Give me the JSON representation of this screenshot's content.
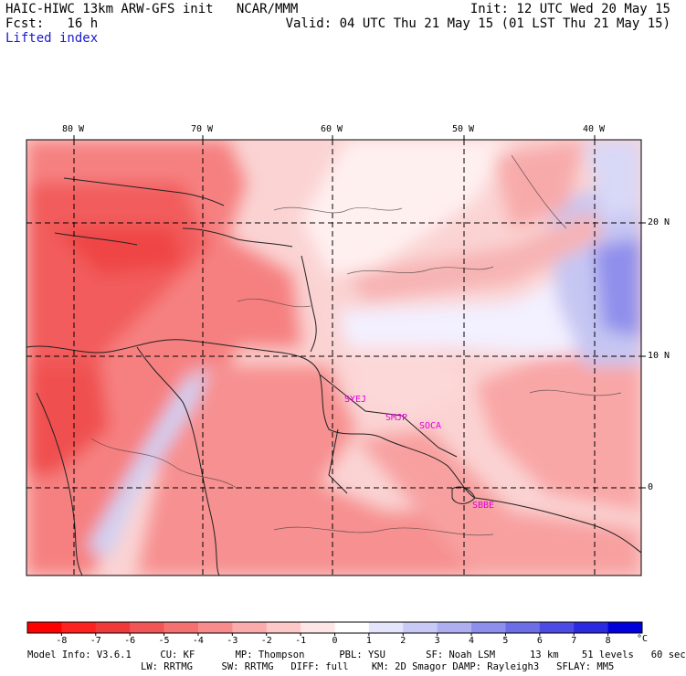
{
  "header": {
    "model_line": "HAIC-HIWC 13km ARW-GFS init   NCAR/MMM",
    "init_line": "Init: 12 UTC Wed 20 May 15",
    "fcst_line": "Fcst:   16 h",
    "valid_line": "Valid: 04 UTC Thu 21 May 15 (01 LST Thu 21 May 15)",
    "field_name": "Lifted index"
  },
  "map": {
    "lon_labels": [
      "80 W",
      "70 W",
      "60 W",
      "50 W",
      "40 W"
    ],
    "lat_labels": [
      "20 N",
      "10 N",
      "0"
    ],
    "station_labels": [
      "SYEJ",
      "SMJP",
      "SOCA",
      "SBBE"
    ],
    "station_color": "#e000e0",
    "land_cover_shown": "Lesser Antilles, Greater Antilles, northern South America"
  },
  "colorbar": {
    "ticks": [
      "-8",
      "-7",
      "-6",
      "-5",
      "-4",
      "-3",
      "-2",
      "-1",
      "0",
      "1",
      "2",
      "3",
      "4",
      "5",
      "6",
      "7",
      "8"
    ],
    "unit": "°C",
    "colors": [
      "#ff0000",
      "#ff2020",
      "#f03a3a",
      "#f25555",
      "#f57070",
      "#f88c8c",
      "#fbabab",
      "#fdc8c8",
      "#ffe6e6",
      "#ffffff",
      "#e4e4fb",
      "#c9c9f6",
      "#aeaef1",
      "#8e8eec",
      "#6d6de8",
      "#4c4ce4",
      "#2a2ae0",
      "#0000dd"
    ]
  },
  "footer": {
    "line1": "Model Info: V3.6.1     CU: KF       MP: Thompson      PBL: YSU       SF: Noah LSM      13 km    51 levels   60 sec",
    "line2": "LW: RRTMG     SW: RRTMG   DIFF: full    KM: 2D Smagor DAMP: Rayleigh3   SFLAY: MM5"
  }
}
